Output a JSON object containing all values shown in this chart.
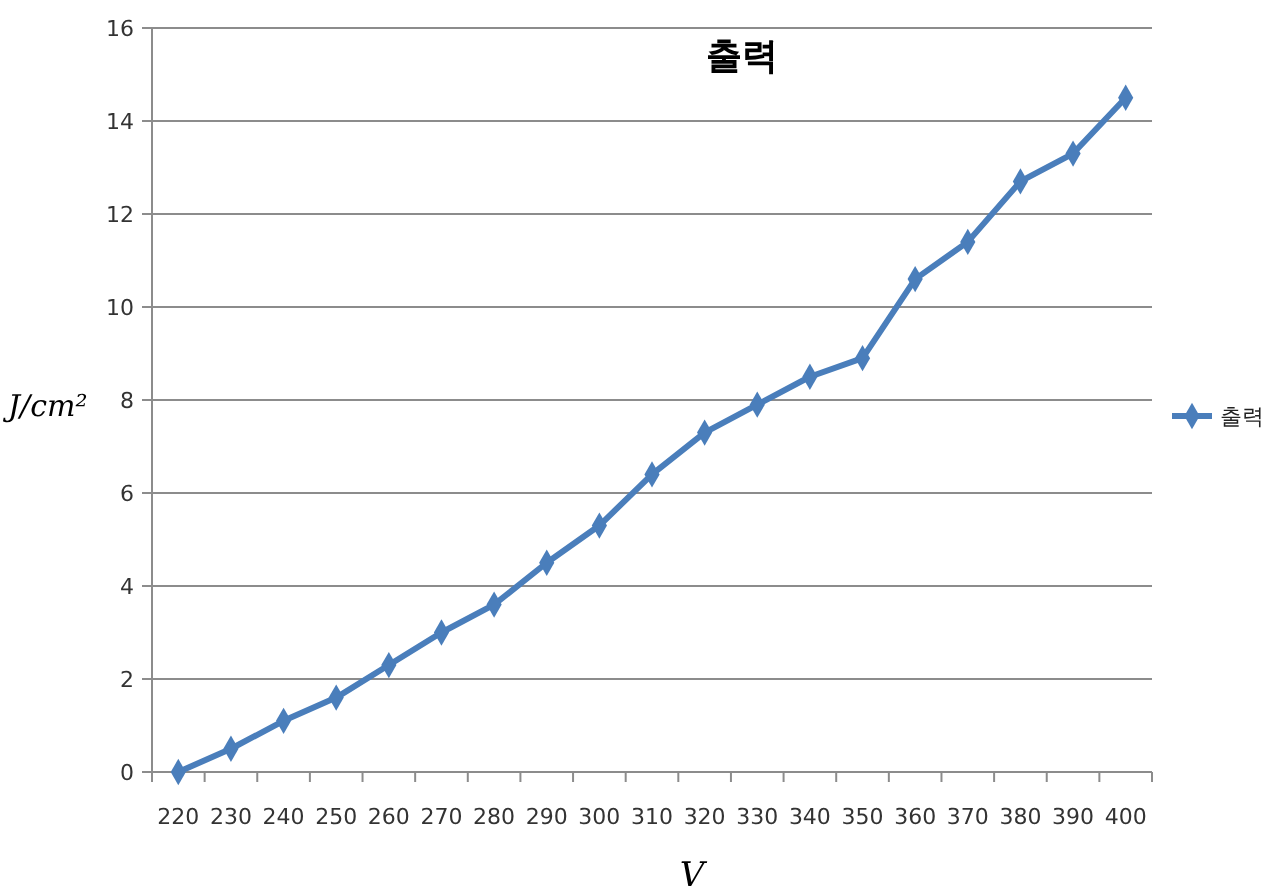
{
  "chart_data": {
    "type": "line",
    "title": "출력",
    "xlabel": "V",
    "ylabel": "J/cm²",
    "categories": [
      "220",
      "230",
      "240",
      "250",
      "260",
      "270",
      "280",
      "290",
      "300",
      "310",
      "320",
      "330",
      "340",
      "350",
      "360",
      "370",
      "380",
      "390",
      "400"
    ],
    "series": [
      {
        "name": "출력",
        "color": "#4a7ebb",
        "values": [
          0,
          0.5,
          1.1,
          1.6,
          2.3,
          3.0,
          3.6,
          4.5,
          5.3,
          6.4,
          7.3,
          7.9,
          8.5,
          8.9,
          10.6,
          11.4,
          12.7,
          13.3,
          14.5
        ]
      }
    ],
    "ylim": [
      0,
      16
    ],
    "yticks": [
      0,
      2,
      4,
      6,
      8,
      10,
      12,
      14,
      16
    ],
    "grid": "y",
    "legend": "right",
    "marker": "diamond",
    "line_style": "solid"
  }
}
